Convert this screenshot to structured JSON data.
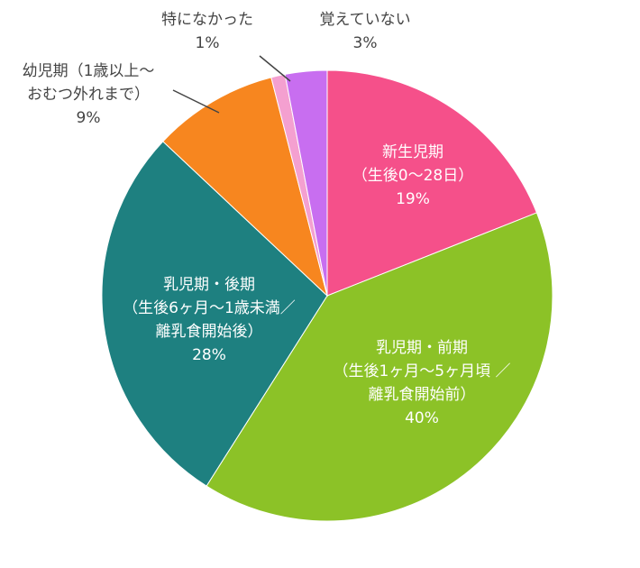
{
  "chart_data": {
    "type": "pie",
    "categories": [
      "新生児期\n（生後0～28日）",
      "乳児期・前期\n（生後1ヶ月～5ヶ月頃 ／\n離乳食開始前）",
      "乳児期・後期\n（生後6ヶ月～1歳未満／\n離乳食開始後）",
      "幼児期（1歳以上～\nおむつ外れまで）",
      "特になかった",
      "覚えていない"
    ],
    "values": [
      19,
      40,
      28,
      9,
      1,
      3
    ],
    "value_labels": [
      "19%",
      "40%",
      "28%",
      "9%",
      "1%",
      "3%"
    ],
    "colors": [
      "#f5508a",
      "#8cc227",
      "#1e8080",
      "#f7861f",
      "#f4a0d0",
      "#c86ef0"
    ]
  }
}
